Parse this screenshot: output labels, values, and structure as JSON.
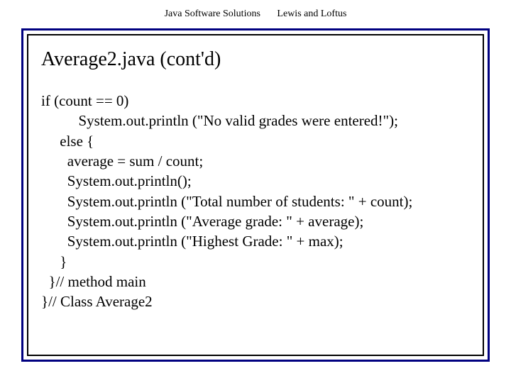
{
  "header": {
    "left": "Java Software Solutions",
    "right": "Lewis and Loftus"
  },
  "title": "Average2.java (cont'd)",
  "code": {
    "lines": [
      "if (count == 0)",
      "          System.out.println (\"No valid grades were entered!\");",
      "     else {",
      "       average = sum / count;",
      "       System.out.println();",
      "       System.out.println (\"Total number of students: \" + count);",
      "       System.out.println (\"Average grade: \" + average);",
      "       System.out.println (\"Highest Grade: \" + max);",
      "     }",
      "  }// method main",
      "}// Class Average2"
    ]
  },
  "colors": {
    "outer_border": "#000080",
    "inner_border": "#000000",
    "background": "#ffffff",
    "text": "#000000"
  },
  "typography": {
    "header_fontsize": 14,
    "title_fontsize": 28,
    "code_fontsize": 21,
    "font_family": "Times New Roman"
  }
}
